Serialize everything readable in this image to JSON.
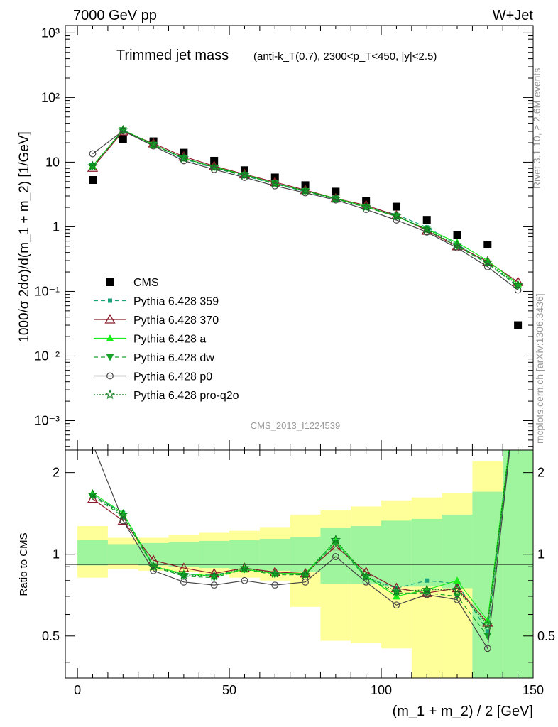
{
  "header": {
    "left": "7000 GeV pp",
    "right": "W+Jet"
  },
  "side_labels": {
    "rivet": "Rivet 3.1.10, ≥ 2.6M events",
    "mcplots": "mcplots.cern.ch [arXiv:1306.3436]"
  },
  "colors": {
    "CMS": "#000000",
    "p359": "#1aa37a",
    "p370": "#8b1a2a",
    "pa": "#1aee1a",
    "pdw": "#16a32a",
    "pp0": "#444444",
    "pq2o": "#0e7a1e",
    "band_inner": "#9ef59e",
    "band_outer": "#ffff99"
  },
  "chart_data": [
    {
      "type": "line",
      "title": "Trimmed jet mass",
      "subtitle": "(anti-k_T(0.7), 2300<p_T<450, |y|<2.5)",
      "watermark": "CMS_2013_I1224539",
      "xlabel": "(m_1 + m_2) / 2 [GeV]",
      "ylabel": "1000/σ 2dσ)/d(m_1 + m_2) [1/GeV]",
      "xlim": [
        -4,
        150
      ],
      "ylim": [
        0.00035,
        1300
      ],
      "yscale": "log",
      "ytick_labels": [
        "10⁻³",
        "10⁻²",
        "10⁻¹",
        "1",
        "10",
        "10²",
        "10³"
      ],
      "legend_position": "left-middle",
      "x": [
        5,
        15,
        25,
        35,
        45,
        55,
        65,
        75,
        85,
        95,
        105,
        115,
        125,
        135,
        145
      ],
      "series": [
        {
          "name": "CMS",
          "key": "CMS",
          "style": "data",
          "values": [
            5.3,
            23,
            21,
            14,
            10.5,
            7.5,
            5.8,
            4.4,
            3.5,
            2.5,
            2.05,
            1.28,
            0.74,
            0.53,
            0.03
          ]
        },
        {
          "name": "Pythia 6.428 359",
          "key": "p359",
          "style": "dashed",
          "marker": "square",
          "values": [
            8.5,
            31,
            18.5,
            11.2,
            8.1,
            6.1,
            4.6,
            3.5,
            2.7,
            2.05,
            1.55,
            0.98,
            0.54,
            0.27,
            0.12
          ]
        },
        {
          "name": "Pythia 6.428 370",
          "key": "p370",
          "style": "solid",
          "marker": "triangle-open",
          "values": [
            8.2,
            30,
            19.5,
            12.2,
            8.7,
            6.5,
            4.9,
            3.7,
            2.75,
            2.15,
            1.5,
            0.87,
            0.5,
            0.29,
            0.14
          ]
        },
        {
          "name": "Pythia 6.428 a",
          "key": "pa",
          "style": "solid",
          "marker": "triangle",
          "values": [
            8.8,
            31.5,
            18.8,
            11.5,
            8.4,
            6.4,
            4.7,
            3.6,
            2.75,
            2.05,
            1.45,
            0.92,
            0.57,
            0.3,
            0.13
          ]
        },
        {
          "name": "Pythia 6.428 dw",
          "key": "pdw",
          "style": "dashed",
          "marker": "triangle-down",
          "values": [
            8.6,
            31,
            18.5,
            11.6,
            8.2,
            6.3,
            4.7,
            3.55,
            2.7,
            2.0,
            1.45,
            0.9,
            0.5,
            0.27,
            0.12
          ]
        },
        {
          "name": "Pythia 6.428 p0",
          "key": "pp0",
          "style": "solid",
          "marker": "circle-open",
          "values": [
            13.5,
            30.5,
            17.8,
            10.5,
            7.7,
            5.8,
            4.3,
            3.35,
            2.6,
            1.85,
            1.27,
            0.83,
            0.47,
            0.24,
            0.105
          ]
        },
        {
          "name": "Pythia 6.428 pro-q2o",
          "key": "pq2o",
          "style": "dotted",
          "marker": "star",
          "values": [
            8.7,
            31.5,
            18.7,
            11.5,
            8.3,
            6.3,
            4.7,
            3.6,
            2.72,
            2.02,
            1.47,
            0.91,
            0.52,
            0.28,
            0.125
          ]
        }
      ]
    },
    {
      "type": "line",
      "ylabel": "Ratio to CMS",
      "xlabel": "(m_1 + m_2) / 2 [GeV]",
      "xlim": [
        -4,
        150
      ],
      "ylim": [
        0.35,
        2.42
      ],
      "yscale": "log",
      "yticks": [
        0.5,
        1,
        2
      ],
      "xticks": [
        0,
        50,
        100,
        150
      ],
      "bin_edges": [
        0,
        10,
        20,
        30,
        40,
        50,
        60,
        70,
        80,
        90,
        100,
        110,
        120,
        130,
        140,
        150
      ],
      "band_inner": [
        [
          0.91,
          1.13
        ],
        [
          0.92,
          1.09
        ],
        [
          0.91,
          1.1
        ],
        [
          0.9,
          1.11
        ],
        [
          0.89,
          1.12
        ],
        [
          0.88,
          1.13
        ],
        [
          0.87,
          1.14
        ],
        [
          0.86,
          1.16
        ],
        [
          0.78,
          1.25
        ],
        [
          0.78,
          1.27
        ],
        [
          0.76,
          1.33
        ],
        [
          0.76,
          1.35
        ],
        [
          0.75,
          1.4
        ],
        [
          0.3,
          1.7
        ],
        [
          0.3,
          2.5
        ]
      ],
      "band_outer": [
        [
          0.82,
          1.27
        ],
        [
          0.88,
          1.15
        ],
        [
          0.87,
          1.15
        ],
        [
          0.86,
          1.18
        ],
        [
          0.84,
          1.2
        ],
        [
          0.82,
          1.22
        ],
        [
          0.8,
          1.26
        ],
        [
          0.64,
          1.4
        ],
        [
          0.48,
          1.45
        ],
        [
          0.47,
          1.5
        ],
        [
          0.45,
          1.58
        ],
        [
          0.3,
          1.62
        ],
        [
          0.3,
          1.68
        ],
        [
          0.3,
          2.2
        ],
        [
          0.3,
          2.5
        ]
      ],
      "x": [
        5,
        15,
        25,
        35,
        45,
        55,
        65,
        75,
        85,
        95,
        105,
        115,
        125,
        135,
        145
      ],
      "series": [
        {
          "key": "p359",
          "style": "dashed",
          "marker": "square",
          "values": [
            1.65,
            1.42,
            0.91,
            0.84,
            0.84,
            0.88,
            0.85,
            0.84,
            1.12,
            0.82,
            0.75,
            0.8,
            0.78,
            0.52,
            4.5
          ]
        },
        {
          "key": "p370",
          "style": "solid",
          "marker": "triangle-open",
          "values": [
            1.6,
            1.33,
            0.95,
            0.89,
            0.85,
            0.89,
            0.86,
            0.85,
            1.07,
            0.86,
            0.75,
            0.72,
            0.75,
            0.56,
            4.5
          ]
        },
        {
          "key": "pa",
          "style": "solid",
          "marker": "triangle",
          "values": [
            1.68,
            1.42,
            0.9,
            0.85,
            0.83,
            0.88,
            0.85,
            0.85,
            1.12,
            0.83,
            0.7,
            0.74,
            0.8,
            0.57,
            4.5
          ]
        },
        {
          "key": "pdw",
          "style": "dashed",
          "marker": "triangle-down",
          "values": [
            1.64,
            1.38,
            0.9,
            0.83,
            0.82,
            0.88,
            0.84,
            0.84,
            1.1,
            0.82,
            0.72,
            0.72,
            0.7,
            0.5,
            4.5
          ]
        },
        {
          "key": "pp0",
          "style": "solid",
          "marker": "circle-open",
          "values": [
            2.55,
            1.33,
            0.87,
            0.79,
            0.77,
            0.8,
            0.77,
            0.79,
            0.98,
            0.79,
            0.65,
            0.71,
            0.68,
            0.45,
            4.5
          ]
        },
        {
          "key": "pq2o",
          "style": "dotted",
          "marker": "star",
          "values": [
            1.66,
            1.4,
            0.9,
            0.84,
            0.83,
            0.89,
            0.85,
            0.84,
            1.13,
            0.83,
            0.73,
            0.74,
            0.74,
            0.55,
            4.5
          ]
        }
      ]
    }
  ]
}
